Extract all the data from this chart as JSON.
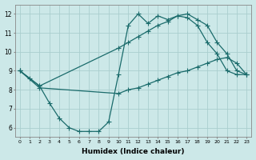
{
  "xlabel": "Humidex (Indice chaleur)",
  "bg_color": "#cce8e8",
  "grid_color": "#aacece",
  "line_color": "#1a6b6b",
  "xlim": [
    -0.5,
    23.5
  ],
  "ylim": [
    5.5,
    12.5
  ],
  "xticks": [
    0,
    1,
    2,
    3,
    4,
    5,
    6,
    7,
    8,
    9,
    10,
    11,
    12,
    13,
    14,
    15,
    16,
    17,
    18,
    19,
    20,
    21,
    22,
    23
  ],
  "yticks": [
    6,
    7,
    8,
    9,
    10,
    11,
    12
  ],
  "line1_x": [
    0,
    1,
    2,
    3,
    4,
    5,
    6,
    7,
    8,
    9,
    10,
    11,
    12,
    13,
    14,
    15,
    16,
    17,
    18,
    19,
    20,
    21,
    22,
    23
  ],
  "line1_y": [
    9.0,
    8.6,
    8.2,
    7.3,
    6.5,
    6.0,
    5.8,
    5.8,
    5.8,
    6.3,
    8.8,
    11.4,
    12.0,
    11.5,
    11.9,
    11.7,
    11.9,
    11.8,
    11.4,
    10.5,
    9.9,
    9.0,
    8.8,
    8.8
  ],
  "line2_x": [
    0,
    2,
    10,
    11,
    12,
    13,
    14,
    15,
    16,
    17,
    18,
    19,
    20,
    21,
    22,
    23
  ],
  "line2_y": [
    9.0,
    8.2,
    10.2,
    10.5,
    10.8,
    11.1,
    11.4,
    11.6,
    11.9,
    12.0,
    11.7,
    11.4,
    10.5,
    9.9,
    9.0,
    8.8
  ],
  "line3_x": [
    0,
    2,
    10,
    11,
    12,
    13,
    14,
    15,
    16,
    17,
    18,
    19,
    20,
    21,
    22,
    23
  ],
  "line3_y": [
    9.0,
    8.1,
    7.8,
    8.0,
    8.1,
    8.3,
    8.5,
    8.7,
    8.9,
    9.0,
    9.2,
    9.4,
    9.6,
    9.7,
    9.4,
    8.8
  ]
}
